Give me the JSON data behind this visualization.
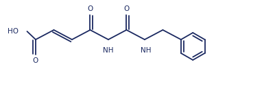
{
  "bg_color": "#ffffff",
  "bond_color": "#1a2860",
  "text_color": "#1a2860",
  "line_width": 1.3,
  "font_size": 7.5,
  "fig_width": 4.02,
  "fig_height": 1.32,
  "dpi": 100,
  "xlim": [
    0,
    402
  ],
  "ylim": [
    0,
    132
  ]
}
